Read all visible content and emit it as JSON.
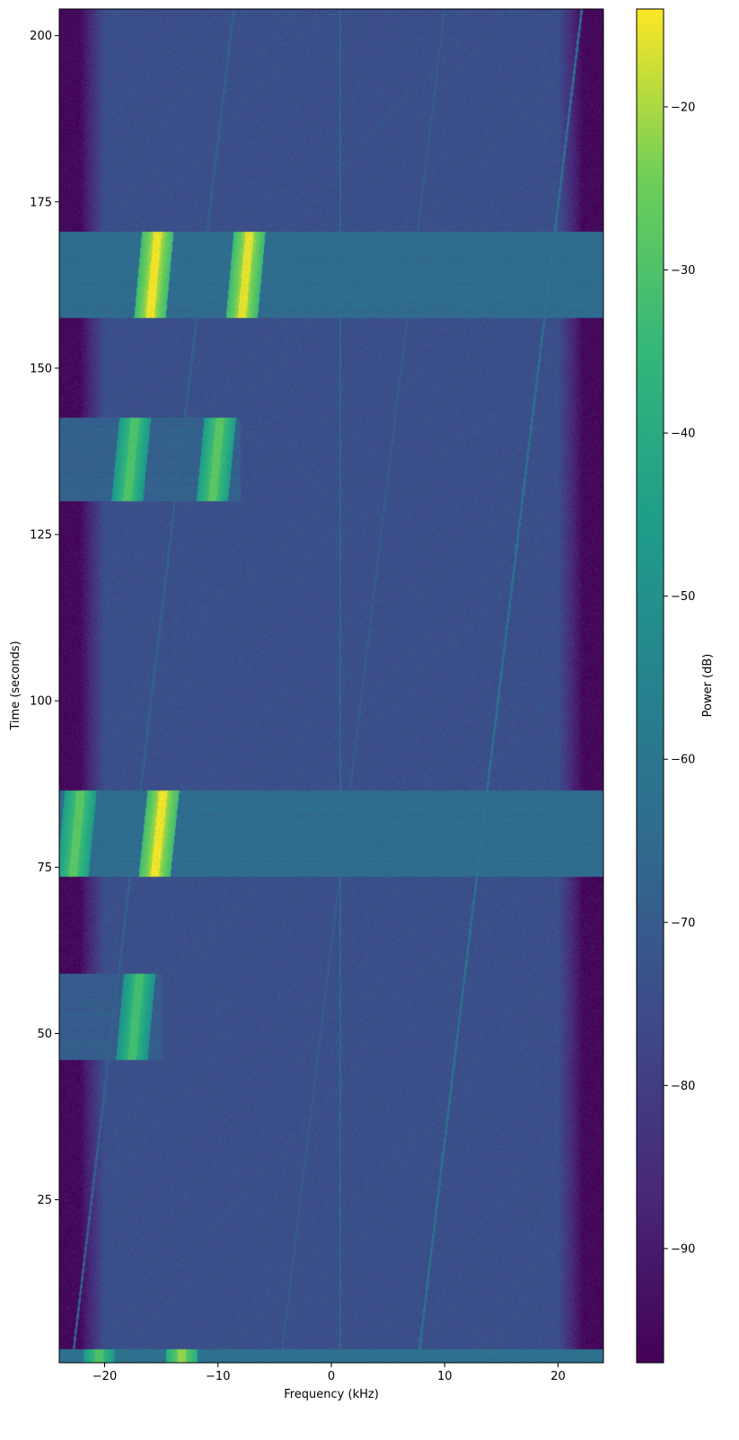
{
  "chart_data": {
    "type": "heatmap",
    "title": "",
    "xlabel": "Frequency (kHz)",
    "ylabel": "Time (seconds)",
    "colorbar_label": "Power (dB)",
    "colormap": "viridis",
    "xlim": [
      -24,
      24
    ],
    "ylim": [
      0.5,
      204
    ],
    "clim": [
      -97,
      -14
    ],
    "x_ticks": [
      -20,
      -10,
      0,
      10,
      20
    ],
    "x_tick_labels": [
      "−20",
      "−10",
      "0",
      "10",
      "20"
    ],
    "y_ticks": [
      25,
      50,
      75,
      100,
      125,
      150,
      175,
      200
    ],
    "y_tick_labels": [
      "25",
      "50",
      "75",
      "100",
      "125",
      "150",
      "175",
      "200"
    ],
    "colorbar_ticks": [
      -90,
      -80,
      -70,
      -60,
      -50,
      -40,
      -30,
      -20
    ],
    "colorbar_tick_labels": [
      "−90",
      "−80",
      "−70",
      "−60",
      "−50",
      "−40",
      "−30",
      "−20"
    ],
    "background_level_db": -74,
    "band_edge_level_db": -95,
    "burst_bands": [
      {
        "t_start": 157.5,
        "t_end": 170.5,
        "f_start": -24,
        "f_end": 24,
        "level_db": -64,
        "carriers": [
          {
            "f_at_start": -16.0,
            "f_at_end": -15.3,
            "level_db": -15
          },
          {
            "f_at_start": -7.9,
            "f_at_end": -7.2,
            "level_db": -16
          }
        ]
      },
      {
        "t_start": 130,
        "t_end": 142.5,
        "f_start": -24,
        "f_end": -8,
        "level_db": -68,
        "carriers": [
          {
            "f_at_start": -18.0,
            "f_at_end": -17.3,
            "level_db": -30
          },
          {
            "f_at_start": -10.5,
            "f_at_end": -9.8,
            "level_db": -28
          }
        ]
      },
      {
        "t_start": 73.5,
        "t_end": 86.5,
        "f_start": -24,
        "f_end": 24,
        "level_db": -64,
        "carriers": [
          {
            "f_at_start": -22.8,
            "f_at_end": -22.1,
            "level_db": -28
          },
          {
            "f_at_start": -15.6,
            "f_at_end": -14.8,
            "level_db": -15
          }
        ]
      },
      {
        "t_start": 46,
        "t_end": 59,
        "f_start": -24,
        "f_end": -15,
        "level_db": -70,
        "carriers": [
          {
            "f_at_start": -17.6,
            "f_at_end": -16.9,
            "level_db": -32
          }
        ]
      },
      {
        "t_start": 0.5,
        "t_end": 2.5,
        "f_start": -24,
        "f_end": 24,
        "level_db": -62,
        "carriers": [
          {
            "f_at_start": -13.2,
            "f_at_end": -13.2,
            "level_db": -22
          },
          {
            "f_at_start": -20.5,
            "f_at_end": -20.5,
            "level_db": -30
          }
        ]
      }
    ],
    "drifting_tones": [
      {
        "f_at_t0": 7.6,
        "f_at_t204": 22.1,
        "level_db": -62
      },
      {
        "f_at_t0": -22.9,
        "f_at_t204": -8.6,
        "level_db": -68
      },
      {
        "f_at_t0": -4.5,
        "f_at_t204": 10.0,
        "level_db": -70
      },
      {
        "f_at_t0": 0.8,
        "f_at_t204": 0.8,
        "level_db": -66
      }
    ]
  }
}
